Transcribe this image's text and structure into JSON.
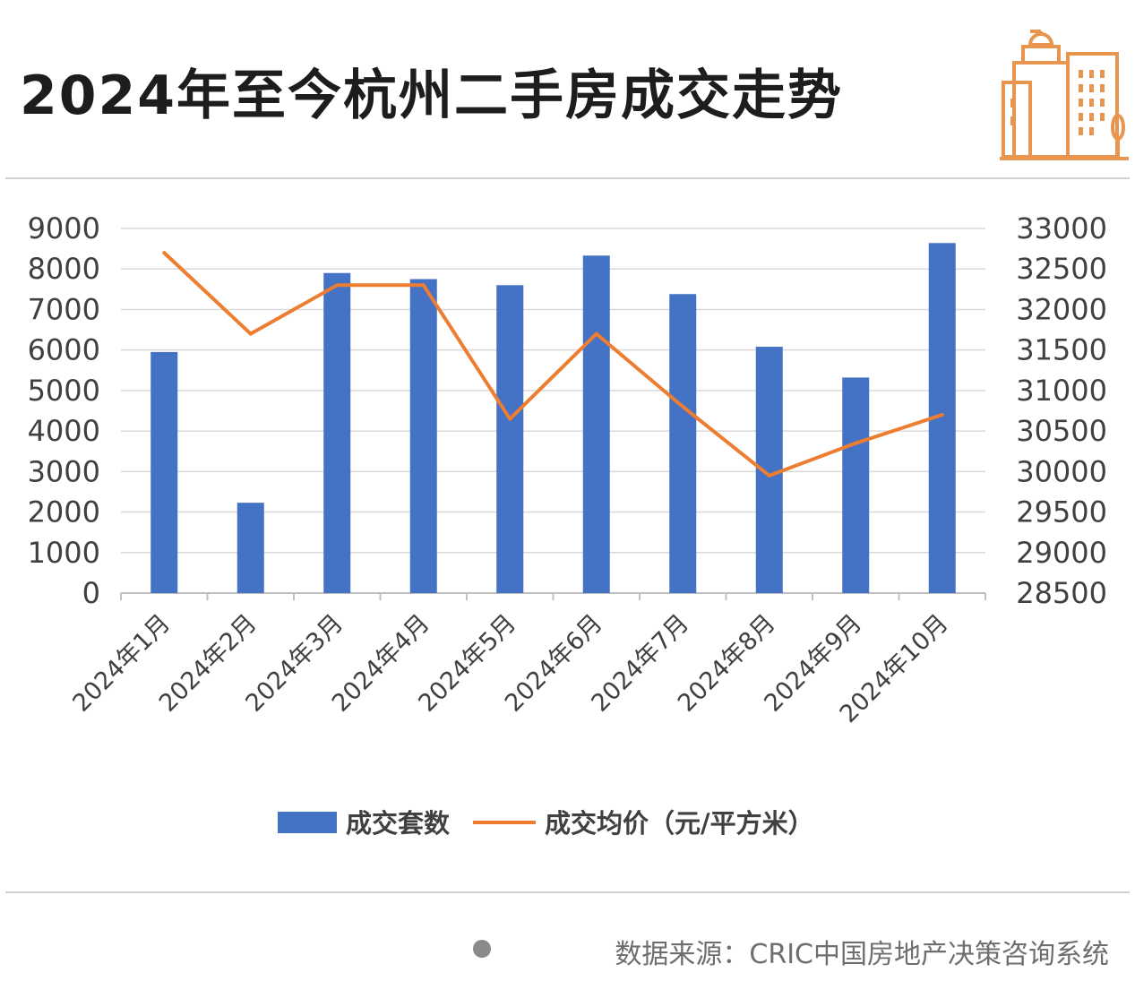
{
  "header": {
    "title": "2024年至今杭州二手房成交走势",
    "icon": "city-buildings-icon",
    "icon_color": "#e8954f"
  },
  "chart_data": {
    "type": "bar+line",
    "categories": [
      "2024年1月",
      "2024年2月",
      "2024年3月",
      "2024年4月",
      "2024年5月",
      "2024年6月",
      "2024年7月",
      "2024年8月",
      "2024年9月",
      "2024年10月"
    ],
    "series": [
      {
        "name": "成交套数",
        "type": "bar",
        "axis": "left",
        "color": "#4472c4",
        "values": [
          5950,
          2230,
          7900,
          7750,
          7600,
          8330,
          7380,
          6080,
          5320,
          8640
        ]
      },
      {
        "name": "成交均价（元/平方米）",
        "type": "line",
        "axis": "right",
        "color": "#ed7d31",
        "values": [
          32700,
          31700,
          32300,
          32300,
          30650,
          31700,
          30800,
          29950,
          30350,
          30700
        ]
      }
    ],
    "y_left": {
      "min": 0,
      "max": 9000,
      "ticks": [
        0,
        1000,
        2000,
        3000,
        4000,
        5000,
        6000,
        7000,
        8000,
        9000
      ]
    },
    "y_right": {
      "min": 28500,
      "max": 33000,
      "ticks": [
        28500,
        29000,
        29500,
        30000,
        30500,
        31000,
        31500,
        32000,
        32500,
        33000
      ]
    },
    "grid": true,
    "legend": "bottom"
  },
  "footer": {
    "source": "数据来源：CRIC中国房地产决策咨询系统"
  }
}
